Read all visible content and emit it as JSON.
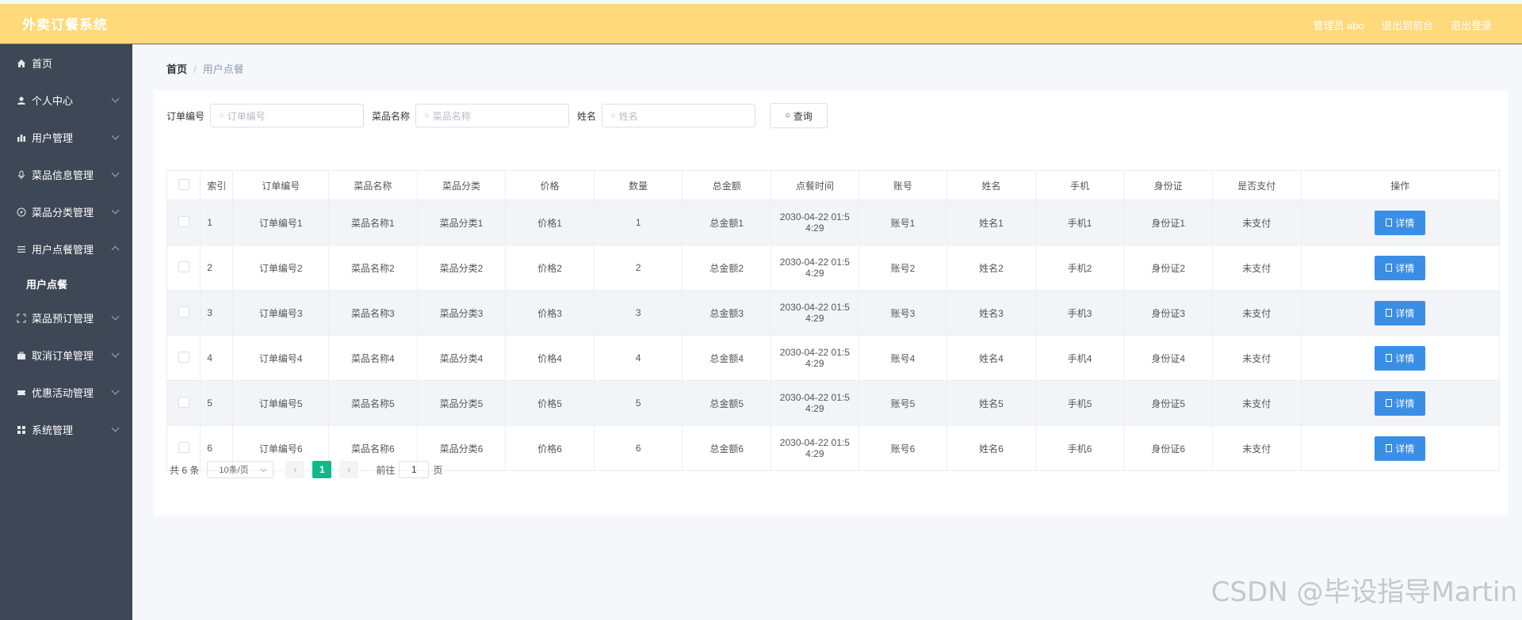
{
  "app": {
    "title": "外卖订餐系统"
  },
  "header": {
    "admin": "管理员 abo",
    "to_front": "退出到前台",
    "logout": "退出登录"
  },
  "sidebar": {
    "items": [
      {
        "label": "首页",
        "icon": "home-icon"
      },
      {
        "label": "个人中心",
        "icon": "user-icon"
      },
      {
        "label": "用户管理",
        "icon": "bar-chart-icon"
      },
      {
        "label": "菜品信息管理",
        "icon": "mic-icon"
      },
      {
        "label": "菜品分类管理",
        "icon": "compass-icon"
      },
      {
        "label": "用户点餐管理",
        "icon": "menu-lines-icon",
        "expanded": true
      },
      {
        "label": "菜品预订管理",
        "icon": "fullscreen-icon"
      },
      {
        "label": "取消订单管理",
        "icon": "briefcase-icon"
      },
      {
        "label": "优惠活动管理",
        "icon": "ticket-icon"
      },
      {
        "label": "系统管理",
        "icon": "grid-icon"
      }
    ],
    "sub_item": "用户点餐"
  },
  "breadcrumb": {
    "home": "首页",
    "current": "用户点餐"
  },
  "search": {
    "order_label": "订单编号",
    "order_placeholder": "订单编号",
    "dish_label": "菜品名称",
    "dish_placeholder": "菜品名称",
    "name_label": "姓名",
    "name_placeholder": "姓名",
    "query_button": "查询"
  },
  "table": {
    "headers": [
      "索引",
      "订单编号",
      "菜品名称",
      "菜品分类",
      "价格",
      "数量",
      "总金额",
      "点餐时间",
      "账号",
      "姓名",
      "手机",
      "身份证",
      "是否支付",
      "操作"
    ],
    "detail_label": "详情",
    "rows": [
      {
        "idx": "1",
        "order": "订单编号1",
        "dish": "菜品名称1",
        "cat": "菜品分类1",
        "price": "价格1",
        "qty": "1",
        "total": "总金额1",
        "time1": "2030-04-22 01:5",
        "time2": "4:29",
        "account": "账号1",
        "name": "姓名1",
        "phone": "手机1",
        "id": "身份证1",
        "paid": "未支付"
      },
      {
        "idx": "2",
        "order": "订单编号2",
        "dish": "菜品名称2",
        "cat": "菜品分类2",
        "price": "价格2",
        "qty": "2",
        "total": "总金额2",
        "time1": "2030-04-22 01:5",
        "time2": "4:29",
        "account": "账号2",
        "name": "姓名2",
        "phone": "手机2",
        "id": "身份证2",
        "paid": "未支付"
      },
      {
        "idx": "3",
        "order": "订单编号3",
        "dish": "菜品名称3",
        "cat": "菜品分类3",
        "price": "价格3",
        "qty": "3",
        "total": "总金额3",
        "time1": "2030-04-22 01:5",
        "time2": "4:29",
        "account": "账号3",
        "name": "姓名3",
        "phone": "手机3",
        "id": "身份证3",
        "paid": "未支付"
      },
      {
        "idx": "4",
        "order": "订单编号4",
        "dish": "菜品名称4",
        "cat": "菜品分类4",
        "price": "价格4",
        "qty": "4",
        "total": "总金额4",
        "time1": "2030-04-22 01:5",
        "time2": "4:29",
        "account": "账号4",
        "name": "姓名4",
        "phone": "手机4",
        "id": "身份证4",
        "paid": "未支付"
      },
      {
        "idx": "5",
        "order": "订单编号5",
        "dish": "菜品名称5",
        "cat": "菜品分类5",
        "price": "价格5",
        "qty": "5",
        "total": "总金额5",
        "time1": "2030-04-22 01:5",
        "time2": "4:29",
        "account": "账号5",
        "name": "姓名5",
        "phone": "手机5",
        "id": "身份证5",
        "paid": "未支付"
      },
      {
        "idx": "6",
        "order": "订单编号6",
        "dish": "菜品名称6",
        "cat": "菜品分类6",
        "price": "价格6",
        "qty": "6",
        "total": "总金额6",
        "time1": "2030-04-22 01:5",
        "time2": "4:29",
        "account": "账号6",
        "name": "姓名6",
        "phone": "手机6",
        "id": "身份证6",
        "paid": "未支付"
      }
    ]
  },
  "pagination": {
    "total": "共 6 条",
    "page_size": "10条/页",
    "current_page": "1",
    "goto_label": "前往",
    "goto_value": "1",
    "page_unit": "页"
  },
  "watermark": "CSDN @毕设指导Martin",
  "colors": {
    "header_bg": "#ffd97a",
    "sidebar_bg": "#3e4756",
    "detail_button": "#3a8ee6",
    "page_active": "#11b98a"
  }
}
